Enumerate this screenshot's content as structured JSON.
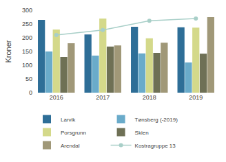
{
  "chart_data": {
    "type": "bar",
    "categories": [
      "2016",
      "2017",
      "2018",
      "2019"
    ],
    "series": [
      {
        "name": "Larvik",
        "color": "#2e6e97",
        "values": [
          265,
          212,
          240,
          238
        ]
      },
      {
        "name": "Tønsberg (-2019)",
        "color": "#6aabca",
        "values": [
          150,
          135,
          143,
          110
        ]
      },
      {
        "name": "Porsgrunn",
        "color": "#d4d98a",
        "values": [
          230,
          270,
          198,
          237
        ]
      },
      {
        "name": "Skien",
        "color": "#6e7055",
        "values": [
          130,
          168,
          145,
          142
        ]
      },
      {
        "name": "Arendal",
        "color": "#a09878",
        "values": [
          180,
          172,
          182,
          275
        ]
      },
      {
        "name": "Kostragruppe 13",
        "color": "#a8cfc8",
        "values": [
          210,
          228,
          262,
          270
        ],
        "type": "line",
        "marker": "circle"
      }
    ],
    "ylabel": "Kroner",
    "ylim": [
      0,
      300
    ],
    "yticks": [
      0,
      50,
      100,
      150,
      200,
      250,
      300
    ],
    "grid": false,
    "legend": "bottom"
  }
}
